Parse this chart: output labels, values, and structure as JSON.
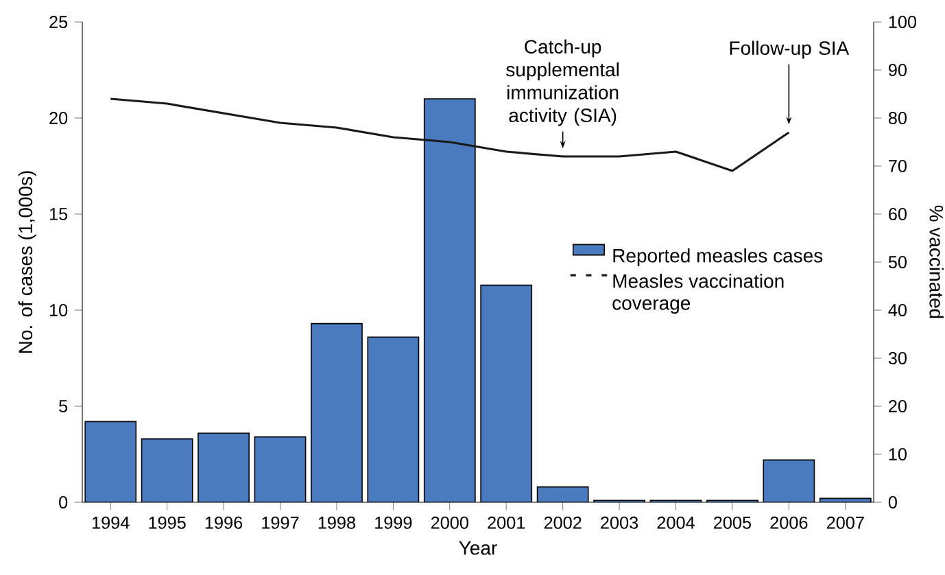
{
  "chart_data": {
    "type": "bar",
    "xlabel": "Year",
    "ylabel": "No. of cases (1,000s)",
    "y2label": "% vaccinated",
    "categories": [
      "1994",
      "1995",
      "1996",
      "1997",
      "1998",
      "1999",
      "2000",
      "2001",
      "2002",
      "2003",
      "2004",
      "2005",
      "2006",
      "2007"
    ],
    "series": [
      {
        "name": "Reported measles cases",
        "color": "#4a7bbf",
        "values": [
          4.2,
          3.3,
          3.6,
          3.4,
          9.3,
          8.6,
          21.0,
          11.3,
          0.8,
          0.1,
          0.1,
          0.1,
          2.2,
          0.2
        ]
      },
      {
        "name": "Measles vaccination coverage",
        "type": "line",
        "axis": "y2",
        "color": "#1a1a1a",
        "values": [
          84,
          83,
          81,
          79,
          78,
          76,
          75,
          73,
          72,
          72,
          73,
          69,
          77,
          null
        ]
      }
    ],
    "ylim": [
      0,
      25
    ],
    "yticks": [
      0,
      5,
      10,
      15,
      20,
      25
    ],
    "y2lim": [
      0,
      100
    ],
    "y2ticks": [
      0,
      10,
      20,
      30,
      40,
      50,
      60,
      70,
      80,
      90,
      100
    ],
    "legend": "right",
    "grid": false,
    "annotations": [
      {
        "text": "Catch-up supplemental immunization activity (SIA)",
        "x": "2002"
      },
      {
        "text": "Follow-up SIA",
        "x": "2006"
      }
    ]
  }
}
